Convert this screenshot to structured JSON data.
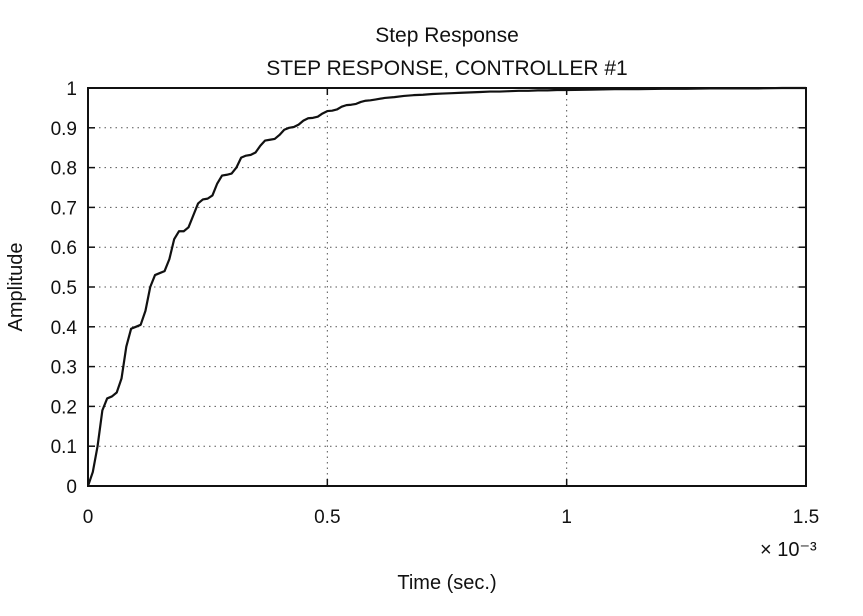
{
  "chart_data": {
    "type": "line",
    "title": "Step Response",
    "subtitle": "STEP RESPONSE, CONTROLLER #1",
    "xlabel": "Time (sec.)",
    "ylabel": "Amplitude",
    "x_scale_note": "× 10⁻³",
    "xlim": [
      0,
      1.5
    ],
    "ylim": [
      0,
      1.0
    ],
    "grid": true,
    "x_ticks": [
      0,
      0.5,
      1,
      1.5
    ],
    "x_tick_labels": [
      "0",
      "0.5",
      "1",
      "1.5"
    ],
    "y_ticks": [
      0,
      0.1,
      0.2,
      0.3,
      0.4,
      0.5,
      0.6,
      0.7,
      0.8,
      0.9,
      1.0
    ],
    "y_tick_labels": [
      "0",
      "0.1",
      "0.2",
      "0.3",
      "0.4",
      "0.5",
      "0.6",
      "0.7",
      "0.8",
      "0.9",
      "1"
    ],
    "series": [
      {
        "x": [
          0,
          0.01,
          0.02,
          0.03,
          0.04,
          0.05,
          0.06,
          0.07,
          0.08,
          0.09,
          0.1,
          0.11,
          0.12,
          0.13,
          0.14,
          0.15,
          0.16,
          0.17,
          0.18,
          0.19,
          0.2,
          0.21,
          0.22,
          0.23,
          0.24,
          0.25,
          0.26,
          0.27,
          0.28,
          0.29,
          0.3,
          0.31,
          0.32,
          0.33,
          0.34,
          0.35,
          0.36,
          0.37,
          0.38,
          0.39,
          0.4,
          0.41,
          0.42,
          0.43,
          0.44,
          0.45,
          0.46,
          0.47,
          0.48,
          0.49,
          0.5,
          0.51,
          0.52,
          0.53,
          0.54,
          0.55,
          0.56,
          0.57,
          0.58,
          0.59,
          0.6,
          0.62,
          0.64,
          0.66,
          0.68,
          0.7,
          0.72,
          0.74,
          0.76,
          0.78,
          0.8,
          0.82,
          0.84,
          0.86,
          0.88,
          0.9,
          0.92,
          0.94,
          0.96,
          0.98,
          1.0,
          1.05,
          1.1,
          1.15,
          1.2,
          1.25,
          1.3,
          1.35,
          1.4,
          1.45,
          1.5
        ],
        "values": [
          0,
          0.035,
          0.1,
          0.19,
          0.22,
          0.225,
          0.235,
          0.27,
          0.35,
          0.395,
          0.4,
          0.405,
          0.44,
          0.5,
          0.53,
          0.535,
          0.54,
          0.57,
          0.62,
          0.64,
          0.64,
          0.65,
          0.68,
          0.71,
          0.72,
          0.722,
          0.73,
          0.76,
          0.78,
          0.782,
          0.785,
          0.8,
          0.825,
          0.83,
          0.832,
          0.838,
          0.855,
          0.868,
          0.87,
          0.872,
          0.882,
          0.895,
          0.9,
          0.902,
          0.908,
          0.918,
          0.924,
          0.925,
          0.928,
          0.936,
          0.942,
          0.943,
          0.946,
          0.953,
          0.957,
          0.958,
          0.96,
          0.965,
          0.968,
          0.969,
          0.971,
          0.975,
          0.977,
          0.98,
          0.982,
          0.983,
          0.985,
          0.986,
          0.987,
          0.988,
          0.989,
          0.99,
          0.991,
          0.991,
          0.992,
          0.993,
          0.993,
          0.994,
          0.994,
          0.995,
          0.995,
          0.996,
          0.997,
          0.997,
          0.998,
          0.998,
          0.999,
          0.999,
          0.999,
          1.0,
          1.0
        ]
      }
    ]
  }
}
